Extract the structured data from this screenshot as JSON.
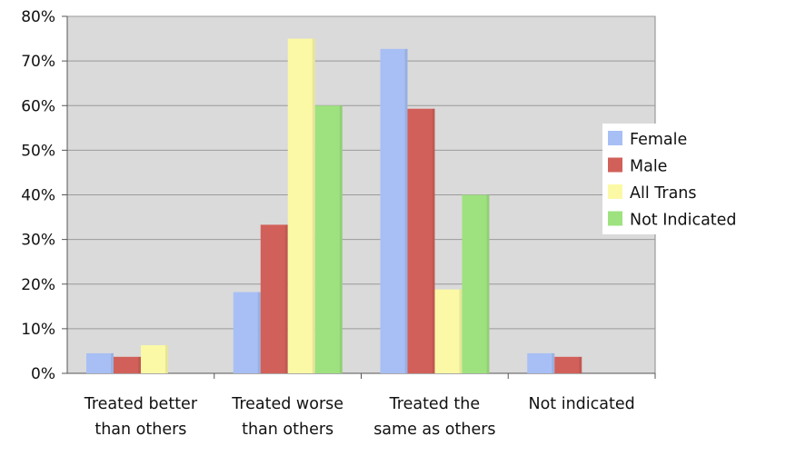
{
  "chart_data": {
    "type": "bar",
    "title": "",
    "xlabel": "",
    "ylabel": "",
    "ylim": [
      0,
      80
    ],
    "y_ticks": [
      "0%",
      "10%",
      "20%",
      "30%",
      "40%",
      "50%",
      "60%",
      "70%",
      "80%"
    ],
    "y_tick_values": [
      0,
      10,
      20,
      30,
      40,
      50,
      60,
      70,
      80
    ],
    "grid": true,
    "legend_position": "right",
    "categories": [
      [
        "Treated better",
        "than others"
      ],
      [
        "Treated worse",
        "than others"
      ],
      [
        "Treated the",
        "same as others"
      ],
      [
        "Not indicated"
      ]
    ],
    "series": [
      {
        "name": "Female",
        "color": "#a7bff5",
        "values": [
          4.5,
          18.2,
          72.7,
          4.5
        ]
      },
      {
        "name": "Male",
        "color": "#d2605a",
        "values": [
          3.7,
          33.3,
          59.3,
          3.7
        ]
      },
      {
        "name": "All Trans",
        "color": "#fbf9a6",
        "values": [
          6.3,
          75.0,
          18.8,
          0
        ]
      },
      {
        "name": "Not Indicated",
        "color": "#9ee27f",
        "values": [
          0,
          60.0,
          40.0,
          0
        ]
      }
    ],
    "plot_background": "#dadada",
    "gridline_color": "#9a9a9a"
  }
}
